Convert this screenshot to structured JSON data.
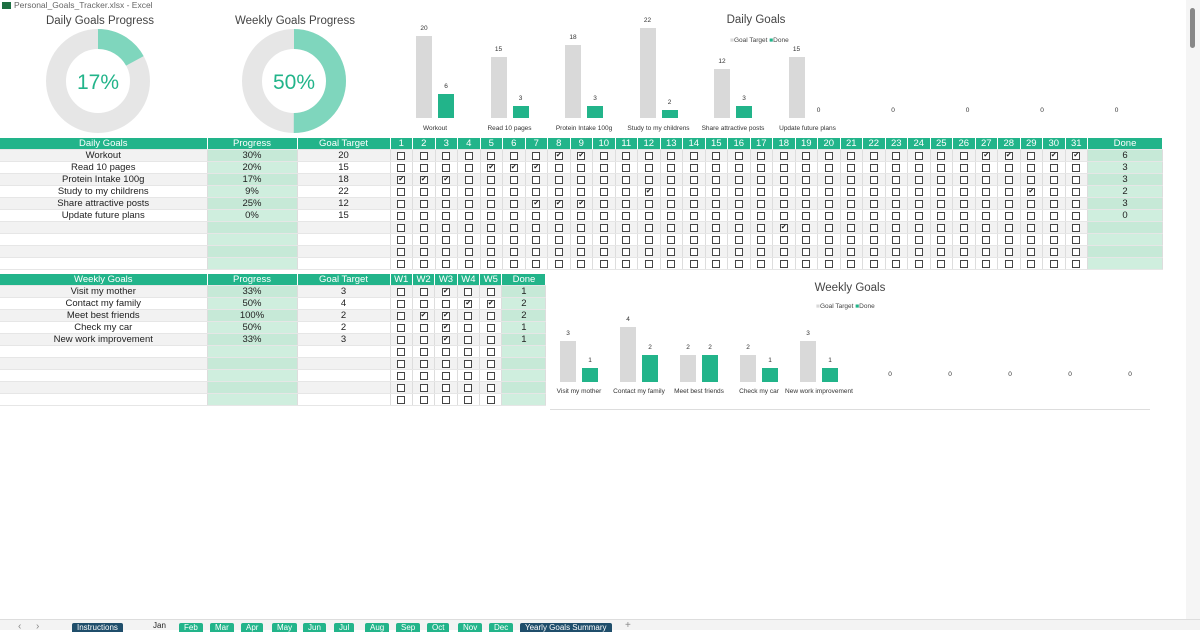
{
  "window": {
    "title": "Personal_Goals_Tracker.xlsx - Excel"
  },
  "donuts": [
    {
      "title": "Daily Goals Progress",
      "value": 17,
      "label": "17%"
    },
    {
      "title": "Weekly Goals Progress",
      "value": 50,
      "label": "50%"
    }
  ],
  "colors": {
    "accent": "#22b48a",
    "light": "#7fd6bd",
    "track": "#e6e6e6",
    "goal_bar": "#d9d9d9",
    "tab_dark": "#1f4e6b"
  },
  "daily": {
    "headers": {
      "goal": "Daily Goals",
      "progress": "Progress",
      "target": "Goal Target",
      "done": "Done"
    },
    "days": [
      "1",
      "2",
      "3",
      "4",
      "5",
      "6",
      "7",
      "8",
      "9",
      "10",
      "11",
      "12",
      "13",
      "14",
      "15",
      "16",
      "17",
      "18",
      "19",
      "20",
      "21",
      "22",
      "23",
      "24",
      "25",
      "26",
      "27",
      "28",
      "29",
      "30",
      "31"
    ],
    "rows": [
      {
        "goal": "Workout",
        "progress": "30%",
        "target": "20",
        "done": "6",
        "checked": [
          8,
          9,
          27,
          28,
          30,
          31
        ]
      },
      {
        "goal": "Read 10 pages",
        "progress": "20%",
        "target": "15",
        "done": "3",
        "checked": [
          5,
          6,
          7
        ]
      },
      {
        "goal": "Protein Intake 100g",
        "progress": "17%",
        "target": "18",
        "done": "3",
        "checked": [
          1,
          2,
          3
        ]
      },
      {
        "goal": "Study to my childrens",
        "progress": "9%",
        "target": "22",
        "done": "2",
        "checked": [
          12,
          29
        ]
      },
      {
        "goal": "Share attractive posts",
        "progress": "25%",
        "target": "12",
        "done": "3",
        "checked": [
          7,
          8,
          9
        ]
      },
      {
        "goal": "Update future plans",
        "progress": "0%",
        "target": "15",
        "done": "0",
        "checked": []
      },
      {
        "goal": "",
        "progress": "",
        "target": "",
        "done": "",
        "checked": [
          18
        ]
      },
      {
        "goal": "",
        "progress": "",
        "target": "",
        "done": "",
        "checked": []
      },
      {
        "goal": "",
        "progress": "",
        "target": "",
        "done": "",
        "checked": []
      },
      {
        "goal": "",
        "progress": "",
        "target": "",
        "done": "",
        "checked": []
      }
    ]
  },
  "weekly": {
    "headers": {
      "goal": "Weekly Goals",
      "progress": "Progress",
      "target": "Goal Target",
      "done": "Done"
    },
    "weeks": [
      "W1",
      "W2",
      "W3",
      "W4",
      "W5"
    ],
    "rows": [
      {
        "goal": "Visit my mother",
        "progress": "33%",
        "target": "3",
        "done": "1",
        "checked": [
          3
        ]
      },
      {
        "goal": "Contact my family",
        "progress": "50%",
        "target": "4",
        "done": "2",
        "checked": [
          4,
          5
        ]
      },
      {
        "goal": "Meet best friends",
        "progress": "100%",
        "target": "2",
        "done": "2",
        "checked": [
          2,
          3
        ]
      },
      {
        "goal": "Check my car",
        "progress": "50%",
        "target": "2",
        "done": "1",
        "checked": [
          3
        ]
      },
      {
        "goal": "New work improvement",
        "progress": "33%",
        "target": "3",
        "done": "1",
        "checked": [
          3
        ]
      },
      {
        "goal": "",
        "progress": "",
        "target": "",
        "done": "",
        "checked": []
      },
      {
        "goal": "",
        "progress": "",
        "target": "",
        "done": "",
        "checked": []
      },
      {
        "goal": "",
        "progress": "",
        "target": "",
        "done": "",
        "checked": []
      },
      {
        "goal": "",
        "progress": "",
        "target": "",
        "done": "",
        "checked": []
      },
      {
        "goal": "",
        "progress": "",
        "target": "",
        "done": "",
        "checked": []
      }
    ]
  },
  "chart_data": [
    {
      "type": "bar",
      "title": "Daily Goals",
      "legend": [
        "Goal Target",
        "Done"
      ],
      "legend_position": "top",
      "categories": [
        "Workout",
        "Read 10 pages",
        "Protein Intake 100g",
        "Study to my childrens",
        "Share attractive posts",
        "Update future plans",
        "",
        "",
        "",
        ""
      ],
      "series": [
        {
          "name": "Goal Target",
          "values": [
            20,
            15,
            18,
            22,
            12,
            15,
            null,
            null,
            null,
            null
          ]
        },
        {
          "name": "Done",
          "values": [
            6,
            3,
            3,
            2,
            3,
            0,
            0,
            0,
            0,
            0
          ]
        }
      ],
      "ylim": [
        0,
        24
      ]
    },
    {
      "type": "bar",
      "title": "Weekly Goals",
      "legend": [
        "Goal Target",
        "Done"
      ],
      "legend_position": "top",
      "categories": [
        "Visit my mother",
        "Contact my family",
        "Meet best friends",
        "Check my car",
        "New work improvement",
        "",
        "",
        "",
        "",
        ""
      ],
      "series": [
        {
          "name": "Goal Target",
          "values": [
            3,
            4,
            2,
            2,
            3,
            null,
            null,
            null,
            null,
            null
          ]
        },
        {
          "name": "Done",
          "values": [
            1,
            2,
            2,
            1,
            1,
            0,
            0,
            0,
            0,
            0
          ]
        }
      ],
      "ylim": [
        0,
        4.4
      ]
    }
  ],
  "sheet_tabs": [
    {
      "label": "Instructions",
      "style": "dark"
    },
    {
      "label": "Jan",
      "style": "active"
    },
    {
      "label": "Feb",
      "style": "green"
    },
    {
      "label": "Mar",
      "style": "green"
    },
    {
      "label": "Apr",
      "style": "green"
    },
    {
      "label": "May",
      "style": "green"
    },
    {
      "label": "Jun",
      "style": "green"
    },
    {
      "label": "Jul",
      "style": "green"
    },
    {
      "label": "Aug",
      "style": "green"
    },
    {
      "label": "Sep",
      "style": "green"
    },
    {
      "label": "Oct",
      "style": "green"
    },
    {
      "label": "Nov",
      "style": "green"
    },
    {
      "label": "Dec",
      "style": "green"
    },
    {
      "label": "Yearly Goals Summary",
      "style": "dark"
    }
  ],
  "nav": {
    "prev": "‹",
    "next": "›",
    "add": "+"
  }
}
